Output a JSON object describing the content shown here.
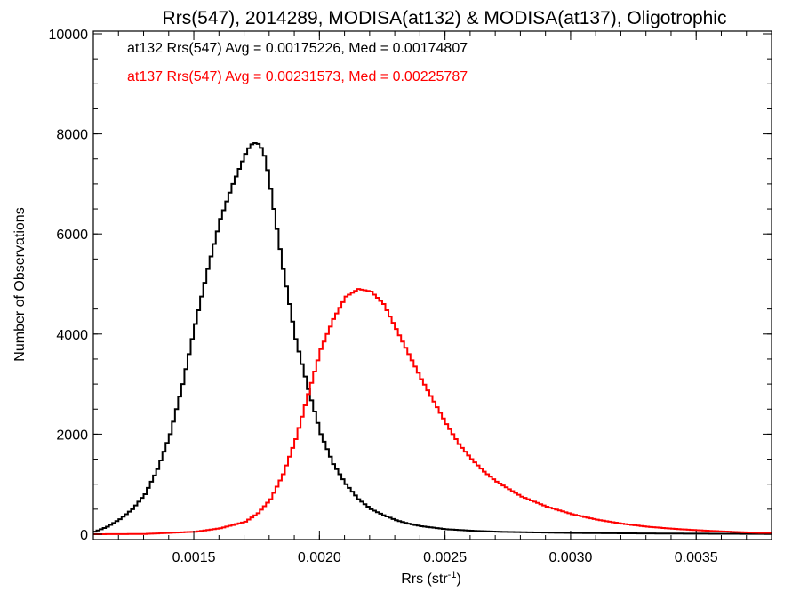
{
  "chart_data": {
    "type": "line",
    "step": true,
    "title": "Rrs(547), 2014289, MODISA(at132) & MODISA(at137), Oligotrophic",
    "xlabel": "Rrs (str",
    "xlabel_sup": "-1",
    "xlabel_close": ")",
    "ylabel": "Number of Observations",
    "xlim": [
      0.0011,
      0.0038
    ],
    "ylim": [
      0,
      10000
    ],
    "x_ticks": [
      0.0015,
      0.002,
      0.0025,
      0.003,
      0.0035
    ],
    "x_tick_labels": [
      "0.0015",
      "0.0020",
      "0.0025",
      "0.0030",
      "0.0035"
    ],
    "y_ticks": [
      0,
      2000,
      4000,
      6000,
      8000,
      10000
    ],
    "y_tick_labels": [
      "0",
      "2000",
      "4000",
      "6000",
      "8000",
      "10000"
    ],
    "grid": false,
    "annotations": [
      {
        "text": "at132 Rrs(547) Avg = 0.00175226, Med = 0.00174807",
        "color": "#000000"
      },
      {
        "text": "at137 Rrs(547) Avg = 0.00231573, Med = 0.00225787",
        "color": "#ff0000"
      }
    ],
    "series": [
      {
        "color": "#000000",
        "x": [
          0.0011,
          0.00115,
          0.0012,
          0.00125,
          0.0013,
          0.00135,
          0.0014,
          0.00145,
          0.0015,
          0.00155,
          0.0016,
          0.00165,
          0.0017,
          0.00172,
          0.00174,
          0.00175,
          0.00176,
          0.00178,
          0.0018,
          0.00185,
          0.0019,
          0.00195,
          0.002,
          0.00205,
          0.0021,
          0.00215,
          0.0022,
          0.00225,
          0.0023,
          0.00235,
          0.0024,
          0.0025,
          0.0026,
          0.0027,
          0.0028,
          0.003,
          0.0033,
          0.0038
        ],
        "y": [
          50,
          150,
          300,
          500,
          800,
          1300,
          2000,
          3000,
          4200,
          5300,
          6300,
          7000,
          7600,
          7780,
          7820,
          7800,
          7750,
          7500,
          6900,
          5300,
          3900,
          2900,
          2000,
          1400,
          1000,
          700,
          500,
          380,
          280,
          210,
          160,
          100,
          70,
          50,
          40,
          25,
          15,
          5
        ]
      },
      {
        "color": "#ff0000",
        "x": [
          0.0011,
          0.0013,
          0.0015,
          0.0016,
          0.0017,
          0.00175,
          0.0018,
          0.00185,
          0.0019,
          0.00195,
          0.002,
          0.00205,
          0.0021,
          0.00215,
          0.0022,
          0.00225,
          0.0023,
          0.00235,
          0.0024,
          0.00245,
          0.0025,
          0.00255,
          0.0026,
          0.00265,
          0.0027,
          0.0028,
          0.0029,
          0.003,
          0.0031,
          0.0032,
          0.0033,
          0.0034,
          0.0035,
          0.0036,
          0.0037,
          0.0038
        ],
        "y": [
          0,
          5,
          50,
          120,
          250,
          420,
          700,
          1200,
          1900,
          2800,
          3700,
          4300,
          4750,
          4900,
          4850,
          4600,
          4100,
          3600,
          3100,
          2650,
          2200,
          1800,
          1500,
          1250,
          1050,
          750,
          550,
          400,
          290,
          210,
          150,
          110,
          80,
          55,
          35,
          20
        ]
      }
    ]
  }
}
